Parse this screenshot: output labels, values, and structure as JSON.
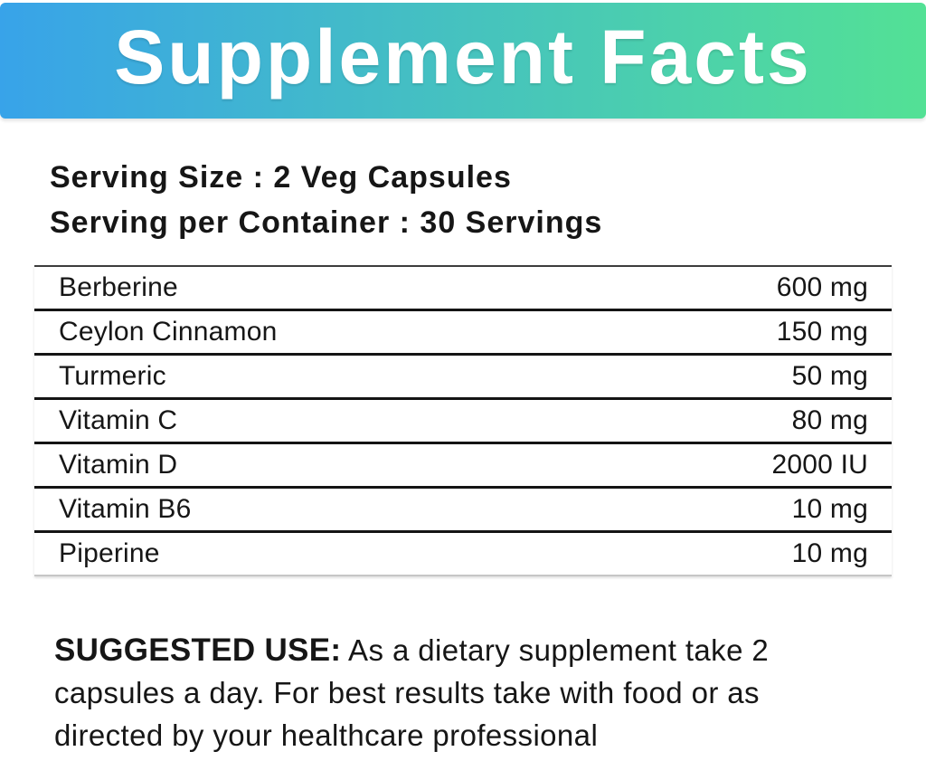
{
  "header": {
    "title": "Supplement Facts",
    "gradient_left": "#38a3e9",
    "gradient_right": "#53e195",
    "title_color": "#ffffff"
  },
  "serving": {
    "size_line": "Serving Size : 2 Veg Capsules",
    "container_line": "Serving per Container : 30 Servings"
  },
  "table": {
    "rows": [
      {
        "name": "Berberine",
        "amount": "600 mg"
      },
      {
        "name": "Ceylon Cinnamon",
        "amount": "150 mg"
      },
      {
        "name": "Turmeric",
        "amount": "50 mg"
      },
      {
        "name": "Vitamin C",
        "amount": "80 mg"
      },
      {
        "name": "Vitamin D",
        "amount": "2000 IU"
      },
      {
        "name": "Vitamin B6",
        "amount": "10 mg"
      },
      {
        "name": "Piperine",
        "amount": "10 mg"
      }
    ]
  },
  "suggested_use": {
    "label": "SUGGESTED USE:",
    "line1": " As a dietary supplement take 2",
    "line2": "capsules a day. For best results take with food or as",
    "line3": "directed by your healthcare professional",
    "text": "As a dietary supplement take 2 capsules a day. For best results take with food or as directed by your healthcare professional"
  }
}
